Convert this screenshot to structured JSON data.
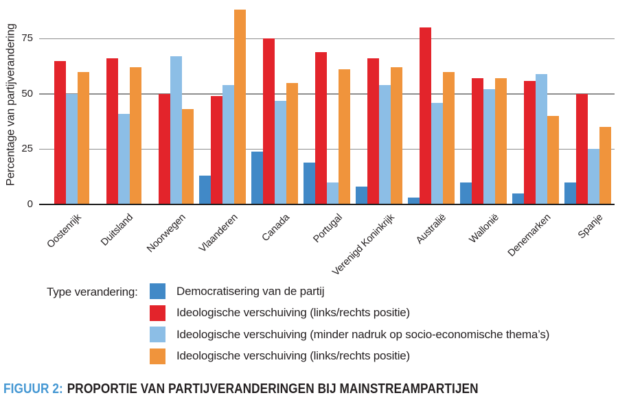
{
  "chart_data": {
    "type": "bar",
    "title": "",
    "ylabel": "Percentage van partijverandering",
    "yticks": [
      0,
      25,
      50,
      75
    ],
    "ylim": [
      0,
      90
    ],
    "grid": true,
    "legend_position": "bottom",
    "categories": [
      "Oostenrijk",
      "Duitsland",
      "Noorwegen",
      "Vlaanderen",
      "Canada",
      "Portugal",
      "Verenigd Koninkrijk",
      "Australië",
      "Wallonië",
      "Denemarken",
      "Spanje"
    ],
    "series": [
      {
        "name": "Democratisering van de partij",
        "color": "#4189C7",
        "values": [
          0,
          0,
          0,
          13,
          24,
          19,
          8,
          3,
          10,
          5,
          10
        ]
      },
      {
        "name": "Ideologische verschuiving (links/rechts positie)",
        "color": "#E3242B",
        "values": [
          65,
          66,
          50,
          49,
          75,
          69,
          66,
          80,
          57,
          56,
          50
        ]
      },
      {
        "name": "Ideologische verschuiving (minder nadruk op socio-economische thema’s)",
        "color": "#8CBEE6",
        "values": [
          50,
          41,
          67,
          54,
          47,
          10,
          54,
          46,
          52,
          59,
          25
        ]
      },
      {
        "name": "Ideologische verschuiving (links/rechts positie)",
        "color": "#F0943C",
        "values": [
          60,
          62,
          43,
          88,
          55,
          61,
          62,
          60,
          57,
          40,
          35
        ]
      }
    ]
  },
  "legend": {
    "title": "Type verandering:"
  },
  "caption": {
    "prefix": "FIGUUR 2:",
    "text": "PROPORTIE VAN PARTIJVERANDERINGEN BIJ MAINSTREAMPARTIJEN"
  },
  "colors": {
    "grid": "#8E8E8E",
    "axis": "#1A1A1A",
    "text": "#231F20",
    "caption_accent": "#4497D3"
  }
}
